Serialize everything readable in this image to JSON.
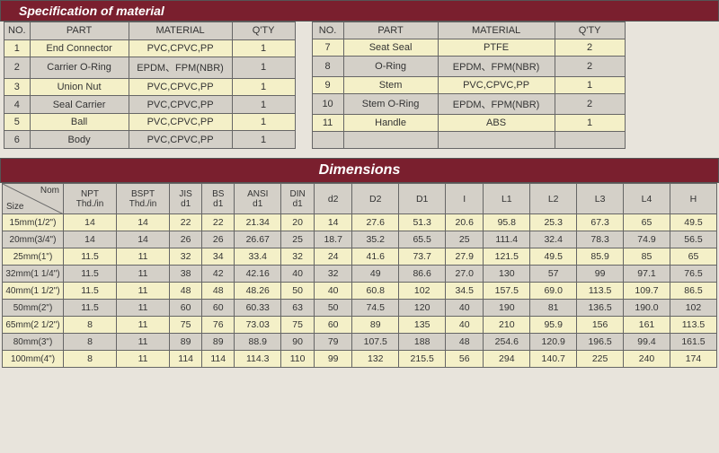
{
  "colors": {
    "header_bg": "#7a1f2e",
    "header_text": "#ffffff",
    "cell_odd": "#f4f0c8",
    "cell_even": "#d4d0c8",
    "border": "#666666",
    "text": "#333333"
  },
  "spec_title": "Specification of material",
  "spec_headers": [
    "NO.",
    "PART",
    "MATERIAL",
    "Q'TY"
  ],
  "spec_left": [
    {
      "no": "1",
      "part": "End Connector",
      "mat": "PVC,CPVC,PP",
      "qty": "1"
    },
    {
      "no": "2",
      "part": "Carrier O-Ring",
      "mat": "EPDM、FPM(NBR)",
      "qty": "1"
    },
    {
      "no": "3",
      "part": "Union Nut",
      "mat": "PVC,CPVC,PP",
      "qty": "1"
    },
    {
      "no": "4",
      "part": "Seal Carrier",
      "mat": "PVC,CPVC,PP",
      "qty": "1"
    },
    {
      "no": "5",
      "part": "Ball",
      "mat": "PVC,CPVC,PP",
      "qty": "1"
    },
    {
      "no": "6",
      "part": "Body",
      "mat": "PVC,CPVC,PP",
      "qty": "1"
    }
  ],
  "spec_right": [
    {
      "no": "7",
      "part": "Seat Seal",
      "mat": "PTFE",
      "qty": "2"
    },
    {
      "no": "8",
      "part": "O-Ring",
      "mat": "EPDM、FPM(NBR)",
      "qty": "2"
    },
    {
      "no": "9",
      "part": "Stem",
      "mat": "PVC,CPVC,PP",
      "qty": "1"
    },
    {
      "no": "10",
      "part": "Stem O-Ring",
      "mat": "EPDM、FPM(NBR)",
      "qty": "2"
    },
    {
      "no": "11",
      "part": "Handle",
      "mat": "ABS",
      "qty": "1"
    }
  ],
  "left_widths": {
    "no": 28,
    "part": 110,
    "mat": 115,
    "qty": 70
  },
  "right_widths": {
    "no": 35,
    "part": 105,
    "mat": 130,
    "qty": 78
  },
  "dim_title": "Dimensions",
  "dim_size_head": {
    "top": "Nom",
    "bottom": "Size"
  },
  "dim_headers": [
    {
      "l1": "NPT",
      "l2": "Thd./in"
    },
    {
      "l1": "BSPT",
      "l2": "Thd./in"
    },
    {
      "l1": "JIS",
      "l2": "d1"
    },
    {
      "l1": "BS",
      "l2": "d1"
    },
    {
      "l1": "ANSI",
      "l2": "d1"
    },
    {
      "l1": "DIN",
      "l2": "d1"
    },
    {
      "l1": "d2",
      "l2": ""
    },
    {
      "l1": "D2",
      "l2": ""
    },
    {
      "l1": "D1",
      "l2": ""
    },
    {
      "l1": "I",
      "l2": ""
    },
    {
      "l1": "L1",
      "l2": ""
    },
    {
      "l1": "L2",
      "l2": ""
    },
    {
      "l1": "L3",
      "l2": ""
    },
    {
      "l1": "L4",
      "l2": ""
    },
    {
      "l1": "H",
      "l2": ""
    }
  ],
  "dim_rows": [
    {
      "size": "15mm(1/2\")",
      "v": [
        "14",
        "14",
        "22",
        "22",
        "21.34",
        "20",
        "14",
        "27.6",
        "51.3",
        "20.6",
        "95.8",
        "25.3",
        "67.3",
        "65",
        "49.5"
      ]
    },
    {
      "size": "20mm(3/4\")",
      "v": [
        "14",
        "14",
        "26",
        "26",
        "26.67",
        "25",
        "18.7",
        "35.2",
        "65.5",
        "25",
        "111.4",
        "32.4",
        "78.3",
        "74.9",
        "56.5"
      ]
    },
    {
      "size": "25mm(1\")",
      "v": [
        "11.5",
        "11",
        "32",
        "34",
        "33.4",
        "32",
        "24",
        "41.6",
        "73.7",
        "27.9",
        "121.5",
        "49.5",
        "85.9",
        "85",
        "65"
      ]
    },
    {
      "size": "32mm(1 1/4\")",
      "v": [
        "11.5",
        "11",
        "38",
        "42",
        "42.16",
        "40",
        "32",
        "49",
        "86.6",
        "27.0",
        "130",
        "57",
        "99",
        "97.1",
        "76.5"
      ]
    },
    {
      "size": "40mm(1 1/2\")",
      "v": [
        "11.5",
        "11",
        "48",
        "48",
        "48.26",
        "50",
        "40",
        "60.8",
        "102",
        "34.5",
        "157.5",
        "69.0",
        "113.5",
        "109.7",
        "86.5"
      ]
    },
    {
      "size": "50mm(2\")",
      "v": [
        "11.5",
        "11",
        "60",
        "60",
        "60.33",
        "63",
        "50",
        "74.5",
        "120",
        "40",
        "190",
        "81",
        "136.5",
        "190.0",
        "102"
      ]
    },
    {
      "size": "65mm(2 1/2\")",
      "v": [
        "8",
        "11",
        "75",
        "76",
        "73.03",
        "75",
        "60",
        "89",
        "135",
        "40",
        "210",
        "95.9",
        "156",
        "161",
        "113.5"
      ]
    },
    {
      "size": "80mm(3\")",
      "v": [
        "8",
        "11",
        "89",
        "89",
        "88.9",
        "90",
        "79",
        "107.5",
        "188",
        "48",
        "254.6",
        "120.9",
        "196.5",
        "99.4",
        "161.5"
      ]
    },
    {
      "size": "100mm(4\")",
      "v": [
        "8",
        "11",
        "114",
        "114",
        "114.3",
        "110",
        "99",
        "132",
        "215.5",
        "56",
        "294",
        "140.7",
        "225",
        "240",
        "174"
      ]
    }
  ]
}
